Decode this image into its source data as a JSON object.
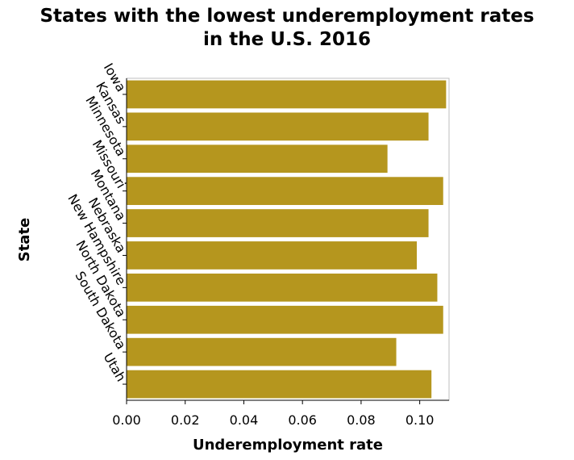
{
  "chart_data": {
    "type": "bar",
    "orientation": "horizontal",
    "title_lines": [
      "States with the lowest underemployment rates",
      "in the U.S. 2016"
    ],
    "xlabel": "Underemployment rate",
    "ylabel": "State",
    "categories": [
      "Iowa",
      "Kansas",
      "Minnesota",
      "Missouri",
      "Montana",
      "Nebraska",
      "New Hampshire",
      "North Dakota",
      "South Dakota",
      "Utah"
    ],
    "values": [
      0.109,
      0.103,
      0.089,
      0.108,
      0.103,
      0.099,
      0.106,
      0.108,
      0.092,
      0.104
    ],
    "xlim": [
      0,
      0.11
    ],
    "xticks": [
      "0.00",
      "0.02",
      "0.04",
      "0.06",
      "0.08",
      "0.10"
    ],
    "bar_color": "#b5961e",
    "grid": false,
    "legend": "none"
  }
}
